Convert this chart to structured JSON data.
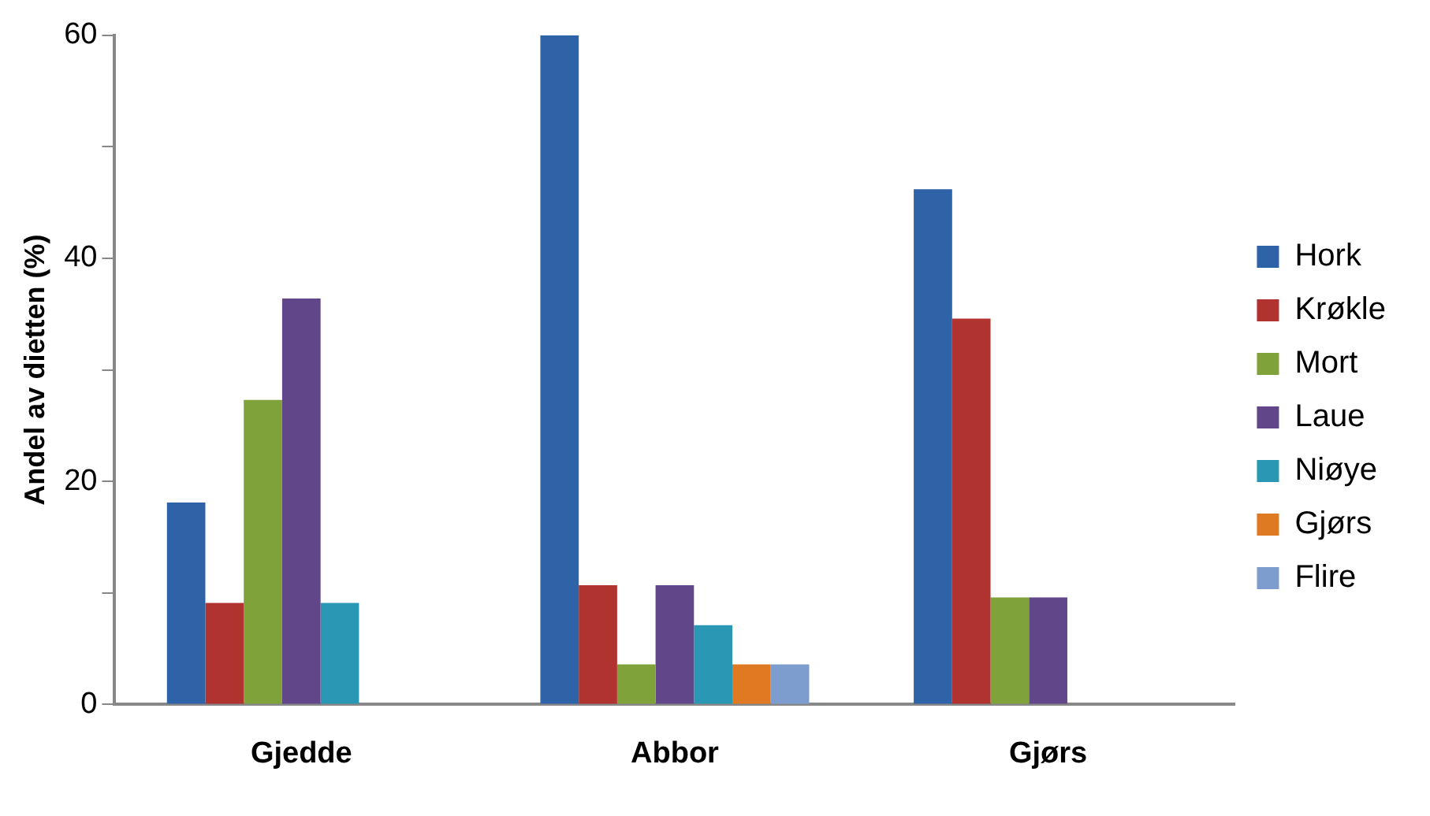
{
  "chart_data": {
    "type": "bar",
    "ylabel": "Andel av dietten (%)",
    "categories": [
      "Gjedde",
      "Abbor",
      "Gjørs"
    ],
    "series": [
      {
        "name": "Hork",
        "color": "#2f63a8",
        "values": [
          18.1,
          60,
          46.2
        ]
      },
      {
        "name": "Krøkle",
        "color": "#b03330",
        "values": [
          9.1,
          10.7,
          34.6
        ]
      },
      {
        "name": "Mort",
        "color": "#7fa33a",
        "values": [
          27.3,
          3.6,
          9.6
        ]
      },
      {
        "name": "Laue",
        "color": "#62468a",
        "values": [
          36.4,
          10.7,
          9.6
        ]
      },
      {
        "name": "Niøye",
        "color": "#2a98b5",
        "values": [
          9.1,
          7.1,
          null
        ]
      },
      {
        "name": "Gjørs",
        "color": "#e07a22",
        "values": [
          null,
          3.6,
          null
        ]
      },
      {
        "name": "Flire",
        "color": "#7e9dcf",
        "values": [
          null,
          3.6,
          null
        ]
      }
    ],
    "ylim": [
      0,
      60
    ],
    "yticks": [
      0,
      {
        "value": 10,
        "label": null
      },
      20,
      {
        "value": 30,
        "label": null
      },
      40,
      {
        "value": 50,
        "label": null
      },
      60
    ],
    "grid": false,
    "legend": "right"
  }
}
